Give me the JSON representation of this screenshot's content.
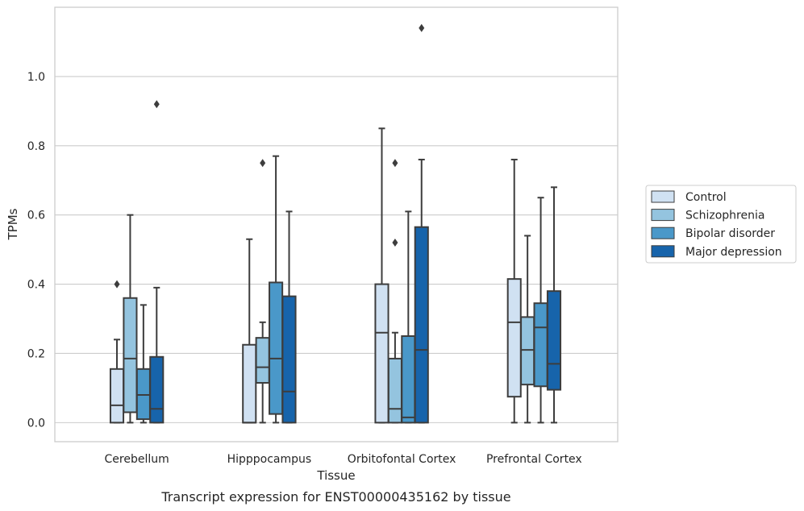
{
  "chart_data": {
    "type": "box",
    "xlabel": "Tissue",
    "ylabel": "TPMs",
    "caption": "Transcript expression for ENST00000435162 by tissue",
    "ylim": [
      -0.055,
      1.2
    ],
    "yticks": [
      "0.0",
      "0.2",
      "0.4",
      "0.6",
      "0.8",
      "1.0"
    ],
    "ytick_values": [
      0.0,
      0.2,
      0.4,
      0.6,
      0.8,
      1.0
    ],
    "grid": "horizontal",
    "legend_position": "right",
    "categories": [
      "Cerebellum",
      "Hipppocampus",
      "Orbitofontal Cortex",
      "Prefrontal Cortex"
    ],
    "series": [
      {
        "name": "Control",
        "color": "#d0e1f2",
        "boxes": [
          {
            "min": 0.0,
            "q1": 0.0,
            "median": 0.05,
            "q3": 0.155,
            "max": 0.24,
            "outliers": [
              0.4
            ]
          },
          {
            "min": 0.0,
            "q1": 0.0,
            "median": 0.0,
            "q3": 0.225,
            "max": 0.53,
            "outliers": []
          },
          {
            "min": 0.0,
            "q1": 0.0,
            "median": 0.26,
            "q3": 0.4,
            "max": 0.85,
            "outliers": []
          },
          {
            "min": 0.0,
            "q1": 0.075,
            "median": 0.29,
            "q3": 0.415,
            "max": 0.76,
            "outliers": []
          }
        ]
      },
      {
        "name": "Schizophrenia",
        "color": "#94c4df",
        "boxes": [
          {
            "min": 0.0,
            "q1": 0.03,
            "median": 0.185,
            "q3": 0.36,
            "max": 0.6,
            "outliers": []
          },
          {
            "min": 0.0,
            "q1": 0.115,
            "median": 0.16,
            "q3": 0.245,
            "max": 0.29,
            "outliers": [
              0.75
            ]
          },
          {
            "min": 0.0,
            "q1": 0.0,
            "median": 0.04,
            "q3": 0.185,
            "max": 0.26,
            "outliers": [
              0.52,
              0.75
            ]
          },
          {
            "min": 0.0,
            "q1": 0.11,
            "median": 0.21,
            "q3": 0.305,
            "max": 0.54,
            "outliers": []
          }
        ]
      },
      {
        "name": "Bipolar disorder",
        "color": "#4a98c9",
        "boxes": [
          {
            "min": 0.0,
            "q1": 0.01,
            "median": 0.08,
            "q3": 0.155,
            "max": 0.34,
            "outliers": []
          },
          {
            "min": 0.0,
            "q1": 0.025,
            "median": 0.185,
            "q3": 0.405,
            "max": 0.77,
            "outliers": []
          },
          {
            "min": 0.0,
            "q1": 0.0,
            "median": 0.015,
            "q3": 0.25,
            "max": 0.61,
            "outliers": []
          },
          {
            "min": 0.0,
            "q1": 0.105,
            "median": 0.275,
            "q3": 0.345,
            "max": 0.65,
            "outliers": []
          }
        ]
      },
      {
        "name": "Major depression",
        "color": "#1764ab",
        "boxes": [
          {
            "min": 0.0,
            "q1": 0.0,
            "median": 0.04,
            "q3": 0.19,
            "max": 0.39,
            "outliers": [
              0.92
            ]
          },
          {
            "min": 0.0,
            "q1": 0.0,
            "median": 0.09,
            "q3": 0.365,
            "max": 0.61,
            "outliers": []
          },
          {
            "min": 0.0,
            "q1": 0.0,
            "median": 0.21,
            "q3": 0.565,
            "max": 0.76,
            "outliers": [
              1.14
            ]
          },
          {
            "min": 0.0,
            "q1": 0.095,
            "median": 0.17,
            "q3": 0.38,
            "max": 0.68,
            "outliers": []
          }
        ]
      }
    ]
  }
}
